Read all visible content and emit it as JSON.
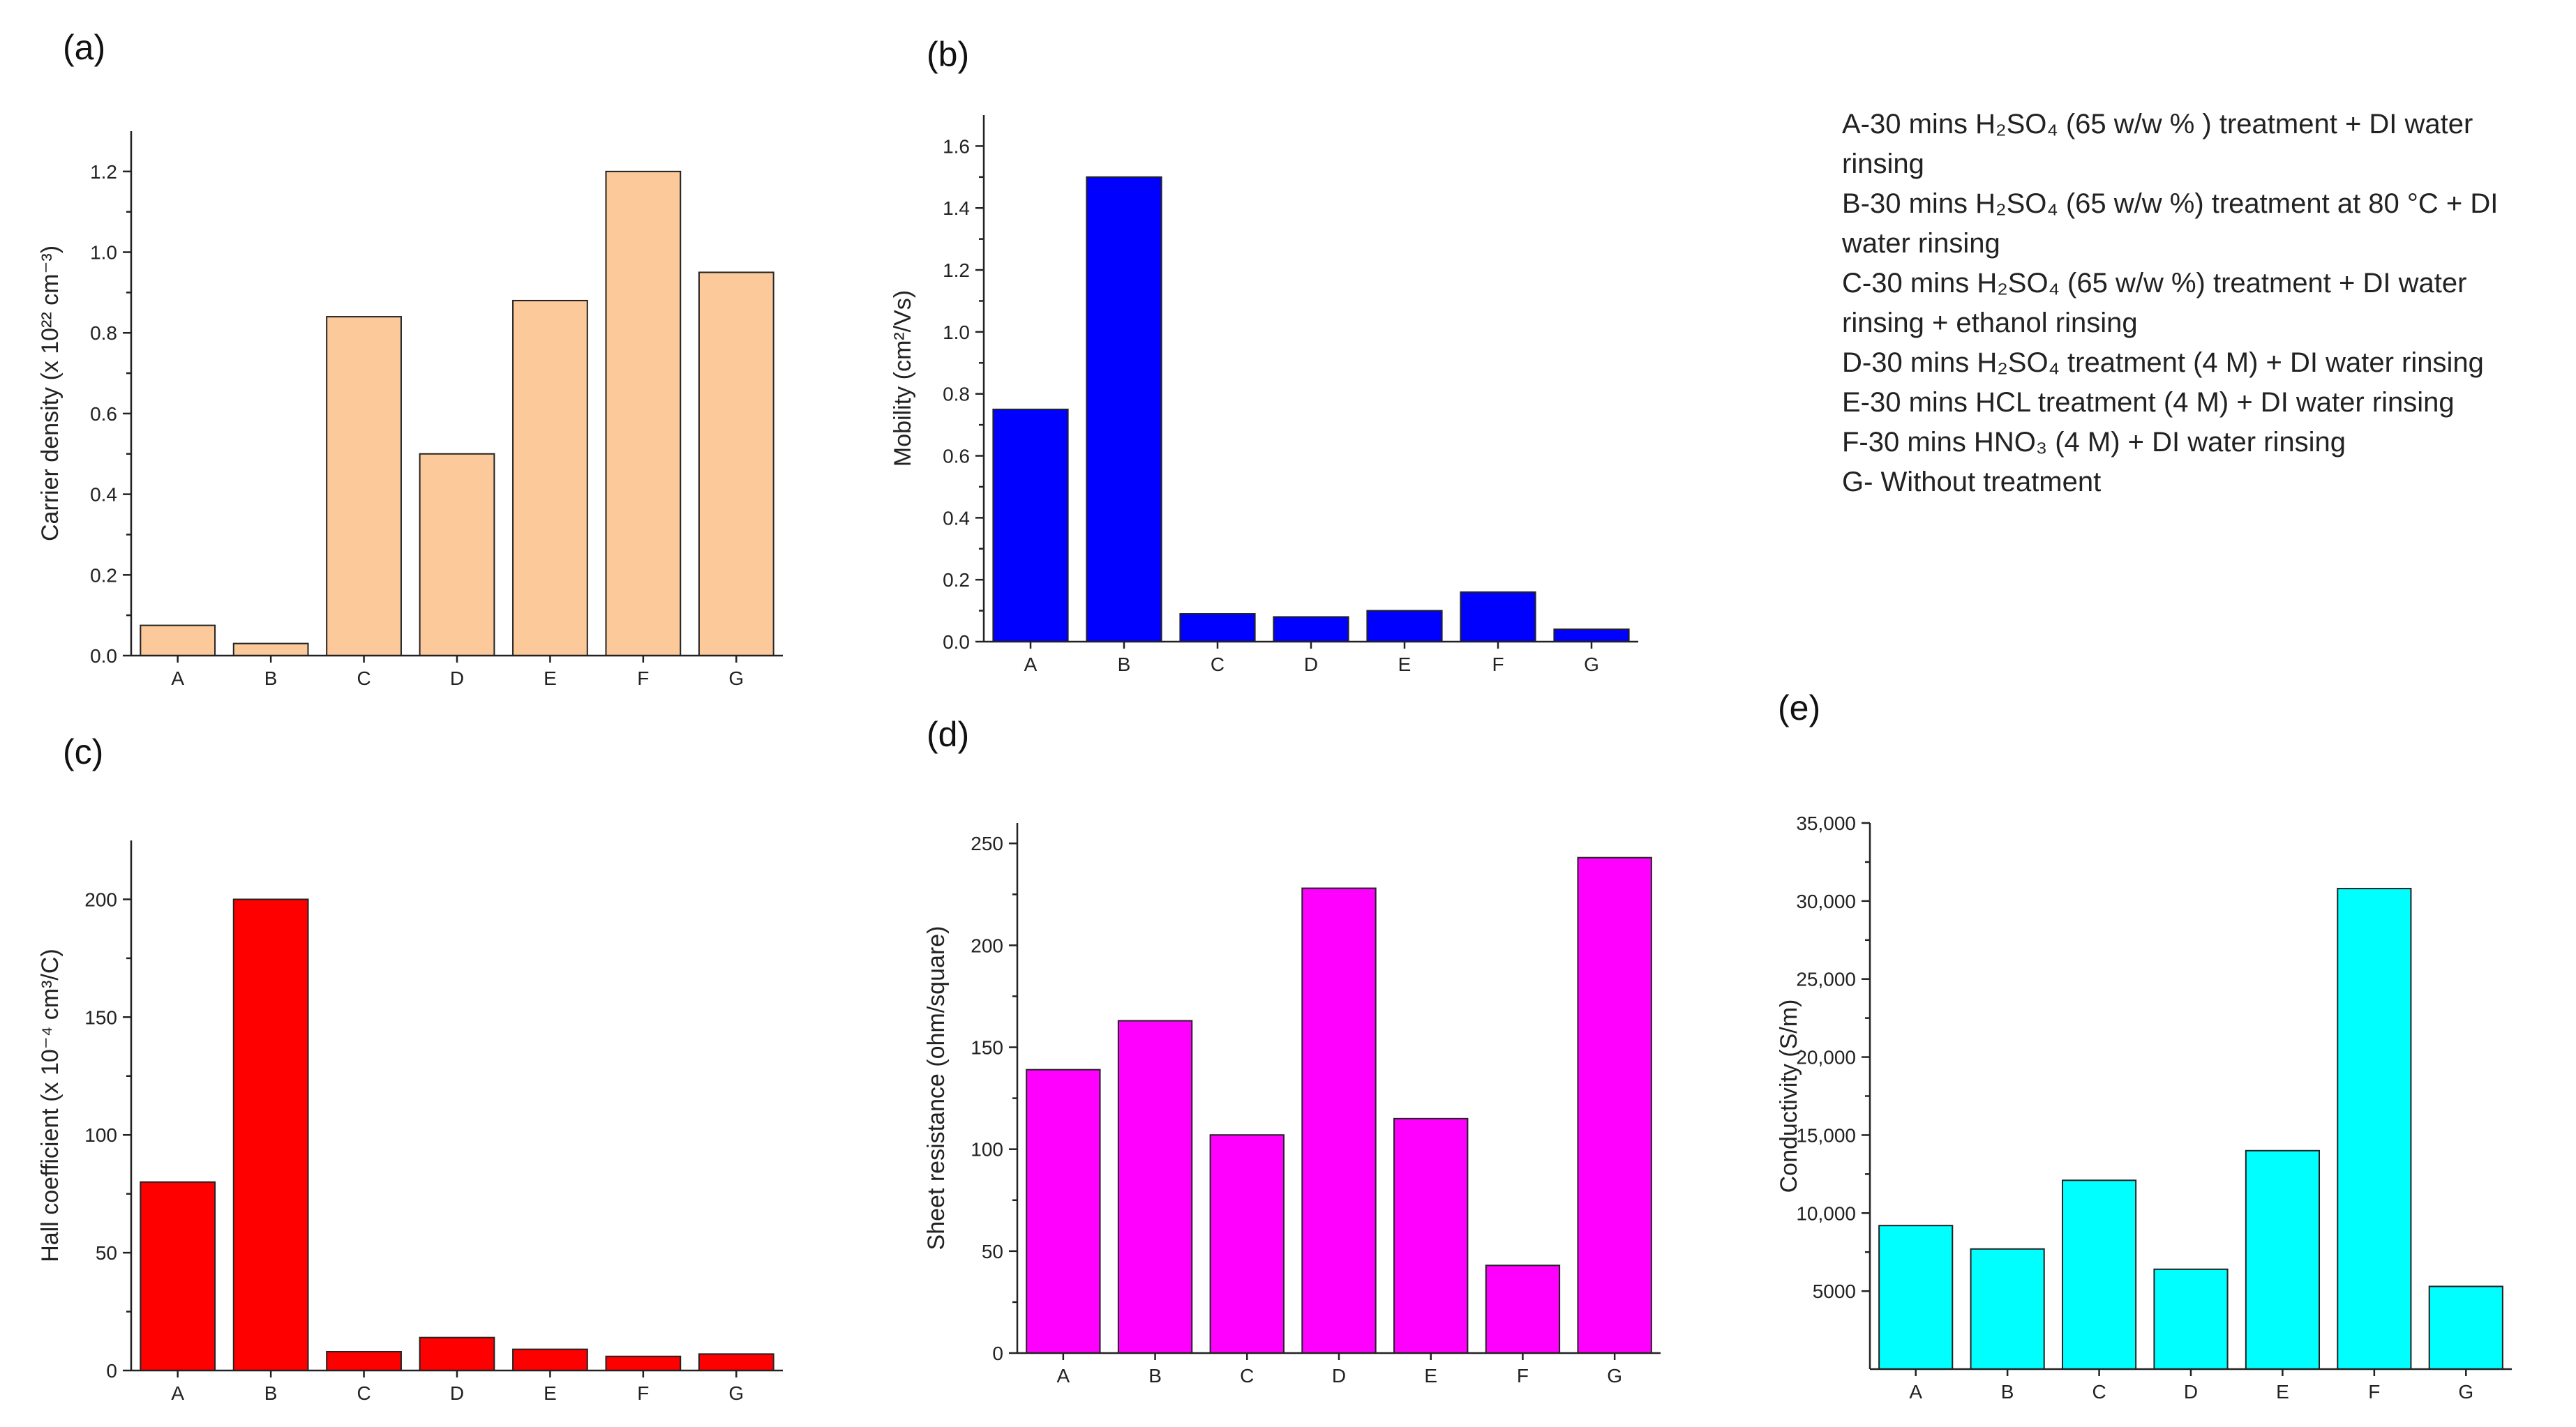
{
  "legend": [
    {
      "text": "A-30 mins H₂SO₄ (65 w/w % ) treatment  + DI water rinsing"
    },
    {
      "text": "B-30 mins H₂SO₄ (65 w/w %) treatment at 80 °C  + DI water rinsing"
    },
    {
      "text": "C-30 mins H₂SO₄ (65 w/w %) treatment  + DI water rinsing + ethanol rinsing"
    },
    {
      "text": "D-30 mins H₂SO₄ treatment (4 M) + DI water rinsing"
    },
    {
      "text": "E-30 mins HCL treatment (4 M) + DI water rinsing"
    },
    {
      "text": "F-30 mins HNO₃ (4 M) + DI water rinsing"
    },
    {
      "text": "G- Without treatment"
    }
  ],
  "chart_data": [
    {
      "label": "(a)",
      "type": "bar",
      "categories": [
        "A",
        "B",
        "C",
        "D",
        "E",
        "F",
        "G"
      ],
      "values": [
        0.075,
        0.03,
        0.84,
        0.5,
        0.88,
        1.2,
        0.95
      ],
      "ylabel": "Carrier density (x 10²² cm⁻³)",
      "ylim": [
        0,
        1.3
      ],
      "yticks": [
        0.0,
        0.2,
        0.4,
        0.6,
        0.8,
        1.0,
        1.2
      ],
      "ytick_labels": [
        "0.0",
        "0.2",
        "0.4",
        "0.6",
        "0.8",
        "1.0",
        "1.2"
      ],
      "color": "#fbc99a"
    },
    {
      "label": "(b)",
      "type": "bar",
      "categories": [
        "A",
        "B",
        "C",
        "D",
        "E",
        "F",
        "G"
      ],
      "values": [
        0.75,
        1.5,
        0.09,
        0.08,
        0.1,
        0.16,
        0.04
      ],
      "ylabel": "Mobility (cm²/Vs)",
      "ylim": [
        0,
        1.7
      ],
      "yticks": [
        0.0,
        0.2,
        0.4,
        0.6,
        0.8,
        1.0,
        1.2,
        1.4,
        1.6
      ],
      "ytick_labels": [
        "0.0",
        "0.2",
        "0.4",
        "0.6",
        "0.8",
        "1.0",
        "1.2",
        "1.4",
        "1.6"
      ],
      "color": "#0000ff"
    },
    {
      "label": "(c)",
      "type": "bar",
      "categories": [
        "A",
        "B",
        "C",
        "D",
        "E",
        "F",
        "G"
      ],
      "values": [
        80,
        200,
        8,
        14,
        9,
        6,
        7
      ],
      "ylabel": "Hall coefficient (x 10⁻⁴ cm³/C)",
      "ylim": [
        0,
        225
      ],
      "yticks": [
        0,
        50,
        100,
        150,
        200
      ],
      "ytick_labels": [
        "0",
        "50",
        "100",
        "150",
        "200"
      ],
      "color": "#ff0000"
    },
    {
      "label": "(d)",
      "type": "bar",
      "categories": [
        "A",
        "B",
        "C",
        "D",
        "E",
        "F",
        "G"
      ],
      "values": [
        139,
        163,
        107,
        228,
        115,
        43,
        243
      ],
      "ylabel": "Sheet resistance (ohm/square)",
      "ylim": [
        0,
        260
      ],
      "yticks": [
        0,
        50,
        100,
        150,
        200,
        250
      ],
      "ytick_labels": [
        "0",
        "50",
        "100",
        "150",
        "200",
        "250"
      ],
      "color": "#ff00ff"
    },
    {
      "label": "(e)",
      "type": "bar",
      "categories": [
        "A",
        "B",
        "C",
        "D",
        "E",
        "F",
        "G"
      ],
      "values": [
        9200,
        7700,
        12100,
        6400,
        14000,
        30800,
        5300
      ],
      "ylabel": "Conductivity (S/m)",
      "ylim": [
        0,
        35000
      ],
      "yticks": [
        5000,
        10000,
        15000,
        20000,
        25000,
        30000,
        35000
      ],
      "ytick_labels": [
        "5000",
        "10,000",
        "15,000",
        "20,000",
        "25,000",
        "30,000",
        "35,000"
      ],
      "color": "#00ffff"
    }
  ]
}
